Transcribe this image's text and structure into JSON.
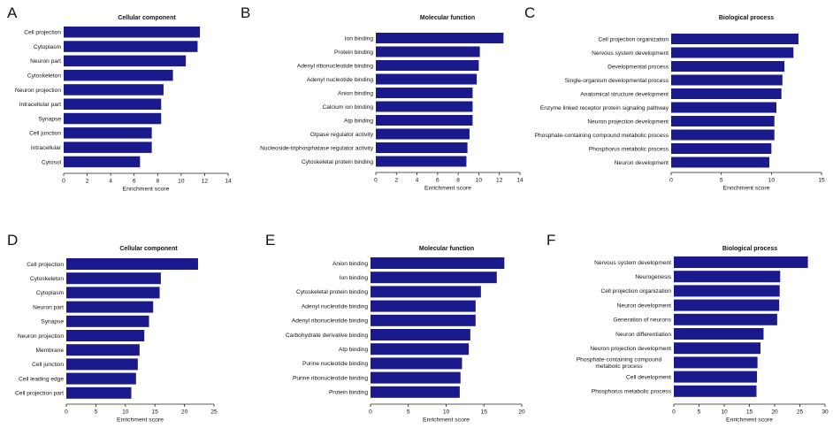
{
  "chart_data": [
    {
      "panel": "A",
      "type": "bar",
      "orientation": "horizontal",
      "title": "Cellular component",
      "xlabel": "Enrichment score",
      "xlim": [
        0,
        14
      ],
      "xticks": [
        0,
        2,
        4,
        6,
        8,
        10,
        12,
        14
      ],
      "categories": [
        "Cell projection",
        "Cytoplasm",
        "Neuron part",
        "Cytoskeleton",
        "Neuron projection",
        "Intracellular part",
        "Synapse",
        "Cell junction",
        "Intracellular",
        "Cytosol"
      ],
      "values": [
        11.6,
        11.4,
        10.4,
        9.3,
        8.5,
        8.3,
        8.3,
        7.5,
        7.5,
        6.5
      ]
    },
    {
      "panel": "B",
      "type": "bar",
      "orientation": "horizontal",
      "title": "Molecular function",
      "xlabel": "Enrichment score",
      "xlim": [
        0,
        14
      ],
      "xticks": [
        0,
        2,
        4,
        6,
        8,
        10,
        12,
        14
      ],
      "categories": [
        "Ion binding",
        "Protein binding",
        "Adenyl ribonucleotide binding",
        "Adenyl nucleotide binding",
        "Anion binding",
        "Calcium ion binding",
        "Atp binding",
        "Gtpase regulator activity",
        "Nucleoside-triphosphatase regulator activity",
        "Cytoskeletal protein binding"
      ],
      "values": [
        12.4,
        10.1,
        10.0,
        9.8,
        9.4,
        9.4,
        9.4,
        9.1,
        8.9,
        8.8
      ]
    },
    {
      "panel": "C",
      "type": "bar",
      "orientation": "horizontal",
      "title": "Biological process",
      "xlabel": "Enrichment score",
      "xlim": [
        0,
        15
      ],
      "xticks": [
        0,
        5,
        10,
        15
      ],
      "categories": [
        "Cell projection organization",
        "Nervous system development",
        "Developmental process",
        "Single-organism developmental process",
        "Anatomical structure development",
        "Enzyme linked receptor protein signaling pathway",
        "Neuron projection development",
        "Phosphate-containing compound metabolic process",
        "Phosphorus metabolic process",
        "Neuron development"
      ],
      "values": [
        12.7,
        12.2,
        11.3,
        11.1,
        11.0,
        10.5,
        10.3,
        10.3,
        10.0,
        9.8
      ]
    },
    {
      "panel": "D",
      "type": "bar",
      "orientation": "horizontal",
      "title": "Cellular component",
      "xlabel": "Enrichment score",
      "xlim": [
        0,
        25
      ],
      "xticks": [
        0,
        5,
        10,
        15,
        20,
        25
      ],
      "categories": [
        "Cell projection",
        "Cytoskeleton",
        "Cytoplasm",
        "Neuron part",
        "Synapse",
        "Neuron projection",
        "Membrane",
        "Cell junction",
        "Cell leading edge",
        "Cell projection part"
      ],
      "values": [
        22.3,
        16.0,
        15.8,
        14.7,
        14.0,
        13.2,
        12.4,
        12.1,
        11.8,
        11.0
      ]
    },
    {
      "panel": "E",
      "type": "bar",
      "orientation": "horizontal",
      "title": "Molecular function",
      "xlabel": "Enrichment score",
      "xlim": [
        0,
        20
      ],
      "xticks": [
        0,
        5,
        10,
        15,
        20
      ],
      "categories": [
        "Anion binding",
        "Ion binding",
        "Cytoskeletal protein binding",
        "Adenyl nucleotide binding",
        "Adenyl ribonucleotide binding",
        "Carbohydrate derivative binding",
        "Atp binding",
        "Purine nucleotide binding",
        "Purine ribonucleotide binding",
        "Protein binding"
      ],
      "values": [
        17.7,
        16.7,
        14.6,
        13.9,
        13.9,
        13.2,
        13.0,
        12.1,
        11.9,
        11.8
      ]
    },
    {
      "panel": "F",
      "type": "bar",
      "orientation": "horizontal",
      "title": "Biological process",
      "xlabel": "Enrichment score",
      "xlim": [
        0,
        30
      ],
      "xticks": [
        0,
        5,
        10,
        15,
        20,
        25,
        30
      ],
      "categories": [
        "Nervous system development",
        "Neurogenesis",
        "Cell projection organization",
        "Neuron development",
        "Generation of neurons",
        "Neuron differentiation",
        "Neuron projection development",
        "Phosphate-containing compound metabolic process",
        "Cell development",
        "Phosphorus metabolic process"
      ],
      "values": [
        26.6,
        21.1,
        21.0,
        20.9,
        20.5,
        17.8,
        17.2,
        16.6,
        16.5,
        16.4
      ]
    }
  ]
}
